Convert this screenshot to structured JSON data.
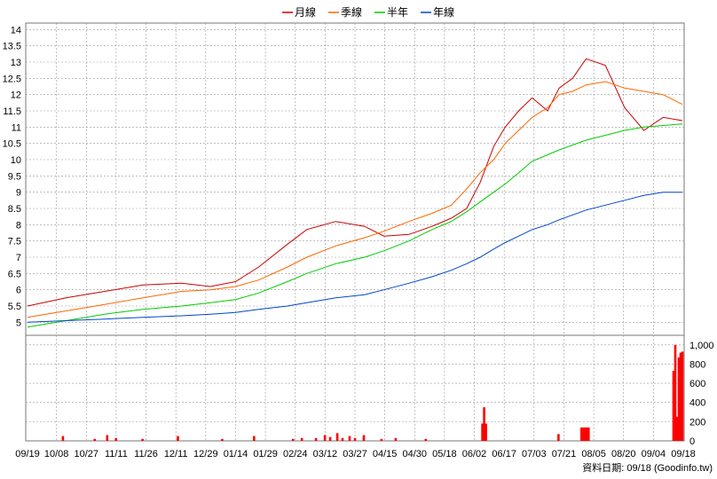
{
  "legend": [
    {
      "label": "月線",
      "color": "#cc0000"
    },
    {
      "label": "季線",
      "color": "#ff6600"
    },
    {
      "label": "半年",
      "color": "#00cc00"
    },
    {
      "label": "年線",
      "color": "#0044cc"
    }
  ],
  "footer": "資料日期: 09/18  (Goodinfo.tw)",
  "chart_data": [
    {
      "type": "line",
      "panel": "price",
      "ylim": [
        4.6,
        14.2
      ],
      "y_ticks": [
        "14",
        "13.5",
        "13",
        "12.5",
        "12",
        "11.5",
        "11",
        "10.5",
        "10",
        "9.5",
        "9",
        "8.5",
        "8",
        "7.5",
        "7",
        "6.5",
        "6",
        "5.5",
        "5"
      ],
      "y_tick_values": [
        14,
        13.5,
        13,
        12.5,
        12,
        11.5,
        11,
        10.5,
        10,
        9.5,
        9,
        8.5,
        8,
        7.5,
        7,
        6.5,
        6,
        5.5,
        5
      ],
      "x_labels": [
        "09/19",
        "10/08",
        "10/27",
        "11/11",
        "11/26",
        "12/11",
        "12/29",
        "01/14",
        "01/29",
        "02/24",
        "03/12",
        "03/27",
        "04/15",
        "04/30",
        "05/18",
        "06/02",
        "06/17",
        "07/03",
        "07/21",
        "08/05",
        "08/20",
        "09/04",
        "09/18"
      ],
      "n_points": 241,
      "series": [
        {
          "name": "月線",
          "color": "#cc0000",
          "x": [
            0,
            20,
            40,
            60,
            80,
            95,
            108,
            120,
            135,
            145,
            160,
            175,
            185,
            198,
            210,
            220,
            228,
            235,
            242,
            248,
            255,
            262,
            270,
            276,
            283,
            290,
            300,
            310,
            320,
            330,
            340
          ],
          "values": [
            5.5,
            5.75,
            5.95,
            6.15,
            6.2,
            6.1,
            6.25,
            6.7,
            7.4,
            7.85,
            8.1,
            7.95,
            7.65,
            7.7,
            7.95,
            8.2,
            8.5,
            9.3,
            10.4,
            11.0,
            11.5,
            11.9,
            11.5,
            12.2,
            12.5,
            13.1,
            12.9,
            11.6,
            10.9,
            11.3,
            11.2
          ]
        },
        {
          "name": "季線",
          "color": "#ff6600",
          "x": [
            0,
            20,
            40,
            60,
            80,
            95,
            108,
            120,
            135,
            145,
            160,
            175,
            185,
            198,
            210,
            220,
            228,
            235,
            242,
            248,
            255,
            262,
            270,
            276,
            283,
            290,
            300,
            310,
            320,
            330,
            340
          ],
          "values": [
            5.15,
            5.35,
            5.55,
            5.75,
            5.95,
            6.0,
            6.1,
            6.3,
            6.7,
            7.0,
            7.35,
            7.6,
            7.8,
            8.1,
            8.35,
            8.6,
            9.1,
            9.6,
            10.0,
            10.5,
            10.9,
            11.3,
            11.6,
            12.0,
            12.1,
            12.3,
            12.4,
            12.2,
            12.1,
            12.0,
            11.7
          ]
        },
        {
          "name": "半年",
          "color": "#00cc00",
          "x": [
            0,
            20,
            40,
            60,
            80,
            95,
            108,
            120,
            135,
            145,
            160,
            175,
            185,
            198,
            210,
            220,
            228,
            235,
            242,
            248,
            255,
            262,
            270,
            276,
            283,
            290,
            300,
            310,
            320,
            330,
            340
          ],
          "values": [
            4.85,
            5.05,
            5.25,
            5.4,
            5.5,
            5.6,
            5.7,
            5.9,
            6.25,
            6.5,
            6.8,
            7.0,
            7.2,
            7.5,
            7.85,
            8.1,
            8.4,
            8.7,
            9.0,
            9.25,
            9.6,
            9.95,
            10.15,
            10.3,
            10.45,
            10.6,
            10.75,
            10.9,
            11.0,
            11.05,
            11.1
          ]
        },
        {
          "name": "年線",
          "color": "#0044cc",
          "x": [
            0,
            20,
            40,
            60,
            80,
            95,
            108,
            120,
            135,
            145,
            160,
            175,
            185,
            198,
            210,
            220,
            228,
            235,
            242,
            248,
            255,
            262,
            270,
            276,
            283,
            290,
            300,
            310,
            320,
            330,
            340
          ],
          "values": [
            5.0,
            5.05,
            5.1,
            5.15,
            5.2,
            5.25,
            5.3,
            5.4,
            5.5,
            5.6,
            5.75,
            5.85,
            6.0,
            6.2,
            6.4,
            6.6,
            6.8,
            7.0,
            7.25,
            7.45,
            7.65,
            7.85,
            8.0,
            8.15,
            8.3,
            8.45,
            8.6,
            8.75,
            8.9,
            9.0,
            9.0
          ]
        }
      ]
    },
    {
      "type": "bar",
      "panel": "volume",
      "ylim": [
        0,
        1100
      ],
      "y_ticks": [
        "1,000",
        "800",
        "600",
        "400",
        "200",
        "0"
      ],
      "y_tick_values": [
        1000,
        800,
        600,
        400,
        200,
        0
      ],
      "color": "#ff0000",
      "bars": [
        {
          "x": 20,
          "v": 50
        },
        {
          "x": 38,
          "v": 20
        },
        {
          "x": 45,
          "v": 60
        },
        {
          "x": 50,
          "v": 30
        },
        {
          "x": 65,
          "v": 20
        },
        {
          "x": 85,
          "v": 50
        },
        {
          "x": 110,
          "v": 20
        },
        {
          "x": 128,
          "v": 50
        },
        {
          "x": 150,
          "v": 20
        },
        {
          "x": 155,
          "v": 30
        },
        {
          "x": 163,
          "v": 30
        },
        {
          "x": 168,
          "v": 60
        },
        {
          "x": 171,
          "v": 40
        },
        {
          "x": 175,
          "v": 80
        },
        {
          "x": 178,
          "v": 30
        },
        {
          "x": 182,
          "v": 50
        },
        {
          "x": 185,
          "v": 30
        },
        {
          "x": 190,
          "v": 60
        },
        {
          "x": 200,
          "v": 20
        },
        {
          "x": 208,
          "v": 30
        },
        {
          "x": 225,
          "v": 20
        },
        {
          "x": 257,
          "v": 180
        },
        {
          "x": 258,
          "v": 350
        },
        {
          "x": 259,
          "v": 180
        },
        {
          "x": 300,
          "v": 70
        },
        {
          "x": 313,
          "v": 140
        },
        {
          "x": 314,
          "v": 140
        },
        {
          "x": 315,
          "v": 140
        },
        {
          "x": 316,
          "v": 140
        },
        {
          "x": 317,
          "v": 140
        },
        {
          "x": 365,
          "v": 730
        },
        {
          "x": 366,
          "v": 1000
        },
        {
          "x": 367,
          "v": 250
        },
        {
          "x": 368,
          "v": 870
        },
        {
          "x": 369,
          "v": 920
        },
        {
          "x": 370,
          "v": 930
        }
      ]
    }
  ]
}
